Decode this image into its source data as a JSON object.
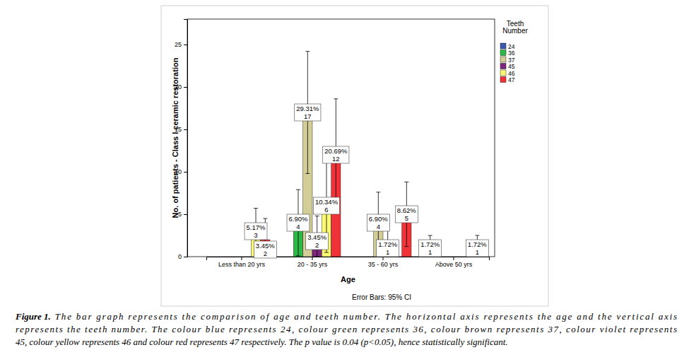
{
  "chart_data": {
    "type": "bar",
    "x_label": "Age",
    "y_label": "No. of patients - Class I ceramic restoration",
    "legend_title": "Teeth Number",
    "legend": "right",
    "data_labels": true,
    "grid": false,
    "note": "Error Bars: 95% CI",
    "figure_label": "Figure 1.",
    "caption_lines": [
      "The bar graph represents the comparison of age and teeth number. The horizontal axis represents the age and the vertical axis",
      "represents the teeth number. The colour blue represents 24, colour green represents 36, colour brown represents 37, colour violet represents",
      "45, colour yellow represents 46 and colour red represents 47 respectively. The p value is 0.04 (p<0.05), hence statistically significant."
    ],
    "categories": [
      "Less than 20 yrs",
      "20 - 35 yrs",
      "35 - 60 yrs",
      "Above 50 yrs"
    ],
    "ylim": [
      0,
      28
    ],
    "yticks": [
      0,
      5,
      10,
      15,
      20,
      25
    ],
    "series": [
      {
        "name": "24",
        "color": "#3e58ac",
        "values": [
          null,
          null,
          null,
          1
        ],
        "percent_labels": [
          null,
          null,
          null,
          "1.72%"
        ],
        "error_low": [
          null,
          null,
          null,
          0
        ],
        "error_high": [
          null,
          null,
          null,
          2.5
        ]
      },
      {
        "name": "36",
        "color": "#2eb848",
        "values": [
          null,
          4,
          null,
          null
        ],
        "percent_labels": [
          null,
          "6.90%",
          null,
          null
        ],
        "error_low": [
          null,
          0.1,
          null,
          null
        ],
        "error_high": [
          null,
          7.9,
          null,
          null
        ]
      },
      {
        "name": "37",
        "color": "#d3ce97",
        "values": [
          null,
          17,
          4,
          null
        ],
        "percent_labels": [
          null,
          "29.31%",
          "6.90%",
          null
        ],
        "error_low": [
          null,
          9.8,
          0.4,
          null
        ],
        "error_high": [
          null,
          24.2,
          7.6,
          null
        ]
      },
      {
        "name": "45",
        "color": "#7c287d",
        "values": [
          null,
          2,
          1,
          null
        ],
        "percent_labels": [
          null,
          "3.45%",
          "1.72%",
          null
        ],
        "error_low": [
          null,
          0,
          0,
          null
        ],
        "error_high": [
          null,
          4.8,
          3.9,
          null
        ]
      },
      {
        "name": "46",
        "color": "#fbf873",
        "values": [
          3,
          6,
          null,
          null
        ],
        "percent_labels": [
          "5.17%",
          "10.34%",
          null,
          null
        ],
        "error_low": [
          0.3,
          0.5,
          null,
          null
        ],
        "error_high": [
          5.7,
          11.5,
          null,
          null
        ]
      },
      {
        "name": "47",
        "color": "#ef3338",
        "values": [
          2,
          12,
          5,
          1
        ],
        "percent_labels": [
          "3.45%",
          "20.69%",
          "8.62%",
          "1.72%"
        ],
        "error_low": [
          0,
          5.3,
          1.2,
          0
        ],
        "error_high": [
          4.5,
          18.6,
          8.8,
          2.5
        ]
      }
    ]
  }
}
